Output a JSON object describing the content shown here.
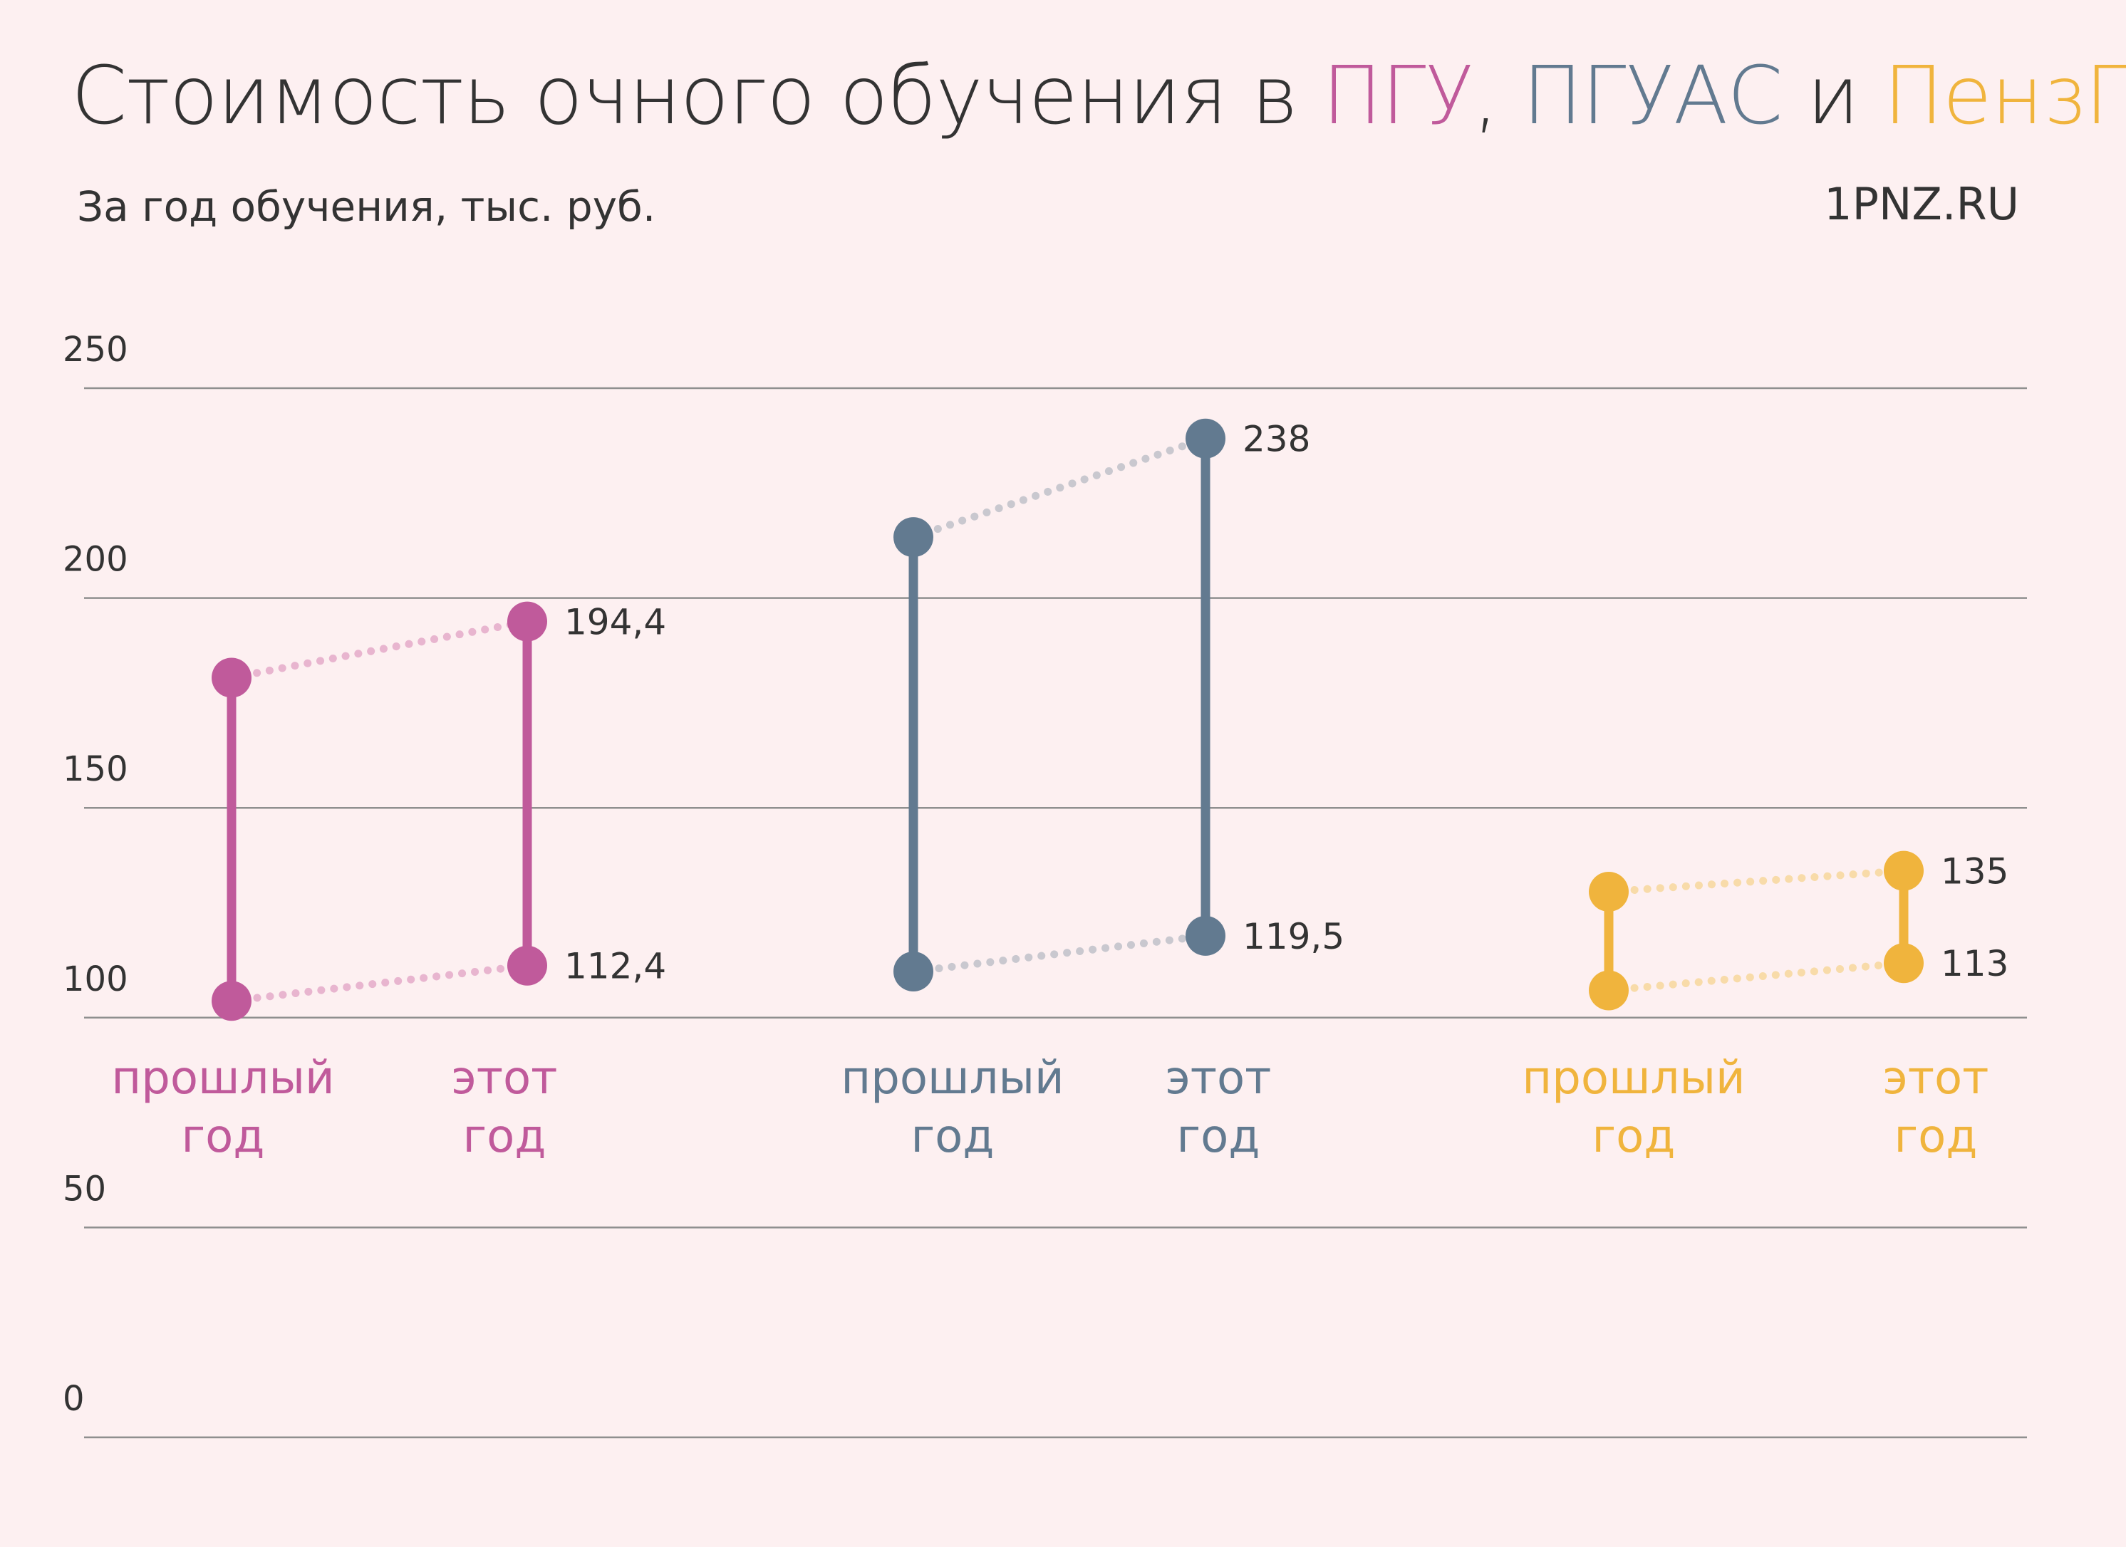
{
  "title": {
    "prefix": "Стоимость очного обучения в ",
    "uni1": "ПГУ",
    "sep": ", ",
    "uni2": "ПГУАС",
    "and": " и ",
    "uni3": "ПензГТУ"
  },
  "subtitle": "За год обучения, тыс. руб.",
  "source": "1PNZ.RU",
  "chart_data": {
    "type": "dot",
    "ylim": [
      0,
      250
    ],
    "yticks": [
      "0",
      "50",
      "100",
      "150",
      "200",
      "250"
    ],
    "ytick_values": [
      0,
      50,
      100,
      150,
      200,
      250
    ],
    "groups": [
      {
        "university": "ПГУ",
        "color": "#c05a9b",
        "connector_color": "#e8b5cf",
        "columns": [
          {
            "label": [
              "прошлый",
              "год"
            ],
            "low": 104,
            "high": 181,
            "low_label": "",
            "high_label": ""
          },
          {
            "label": [
              "этот",
              "год"
            ],
            "low": 112.4,
            "high": 194.4,
            "low_label": "112,4",
            "high_label": "194,4"
          }
        ]
      },
      {
        "university": "ПГУАС",
        "color": "#627a90",
        "connector_color": "#c9c8cf",
        "columns": [
          {
            "label": [
              "прошлый",
              "год"
            ],
            "low": 111,
            "high": 214.5,
            "low_label": "",
            "high_label": ""
          },
          {
            "label": [
              "этот",
              "год"
            ],
            "low": 119.5,
            "high": 238,
            "low_label": "119,5",
            "high_label": "238"
          }
        ]
      },
      {
        "university": "ПензГТУ",
        "color": "#f0b43d",
        "connector_color": "#f8dba9",
        "columns": [
          {
            "label": [
              "прошлый",
              "год"
            ],
            "low": 106.5,
            "high": 130,
            "low_label": "",
            "high_label": ""
          },
          {
            "label": [
              "этот",
              "год"
            ],
            "low": 113,
            "high": 135,
            "low_label": "113",
            "high_label": "135"
          }
        ]
      }
    ]
  }
}
